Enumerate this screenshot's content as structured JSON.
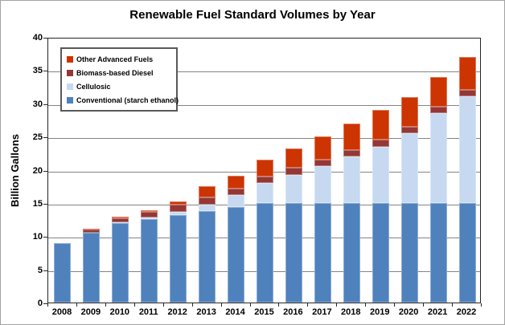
{
  "chart_data": {
    "type": "bar",
    "stacked": true,
    "title": "Renewable Fuel Standard Volumes by Year",
    "xlabel": "",
    "ylabel": "Billion Gallons",
    "ylim": [
      0,
      40
    ],
    "y_ticks": [
      0,
      5,
      10,
      15,
      20,
      25,
      30,
      35,
      40
    ],
    "grid": true,
    "legend_position": "top-left",
    "categories": [
      "2008",
      "2009",
      "2010",
      "2011",
      "2012",
      "2013",
      "2014",
      "2015",
      "2016",
      "2017",
      "2018",
      "2019",
      "2020",
      "2021",
      "2022"
    ],
    "series": [
      {
        "name": "Conventional (starch ethanol)",
        "color": "#4F81BD",
        "values": [
          9.0,
          10.5,
          12.0,
          12.6,
          13.2,
          13.8,
          14.4,
          15.0,
          15.0,
          15.0,
          15.0,
          15.0,
          15.0,
          15.0,
          15.0
        ]
      },
      {
        "name": "Cellulosic",
        "color": "#C6D9F1",
        "values": [
          0,
          0,
          0.1,
          0.25,
          0.5,
          1.0,
          1.75,
          3.0,
          4.25,
          5.5,
          7.0,
          8.5,
          10.5,
          13.5,
          16.0
        ]
      },
      {
        "name": "Biomass-based Diesel",
        "color": "#943735",
        "values": [
          0,
          0.5,
          0.65,
          0.8,
          1.0,
          1.0,
          1.0,
          1.0,
          1.0,
          1.0,
          1.0,
          1.0,
          1.0,
          1.0,
          1.0
        ]
      },
      {
        "name": "Other Advanced Fuels",
        "color": "#CC3402",
        "values": [
          0,
          0.1,
          0.2,
          0.3,
          0.5,
          1.75,
          2.0,
          2.5,
          3.0,
          3.5,
          4.0,
          4.5,
          4.5,
          4.5,
          5.0
        ]
      }
    ],
    "legend_order_top_to_bottom": [
      "Other Advanced Fuels",
      "Biomass-based Diesel",
      "Cellulosic",
      "Conventional (starch ethanol)"
    ],
    "bar_totals": [
      9.0,
      11.1,
      12.95,
      13.95,
      15.2,
      17.55,
      19.15,
      21.5,
      23.25,
      25.0,
      27.0,
      29.0,
      31.0,
      34.0,
      37.0
    ]
  }
}
